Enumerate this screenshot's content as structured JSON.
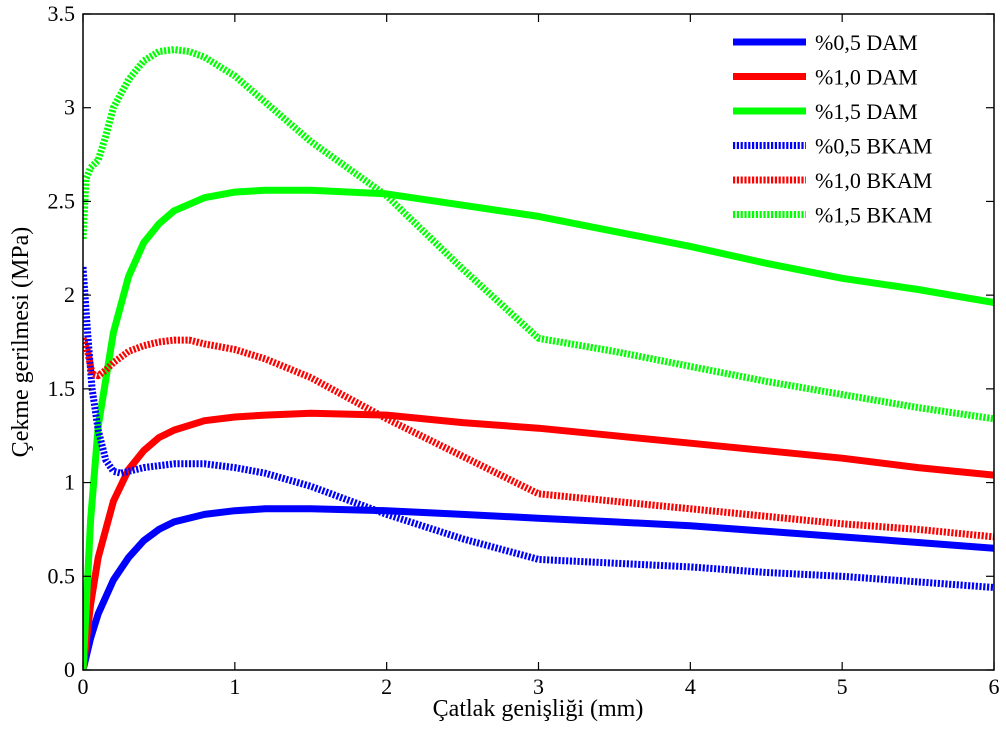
{
  "chart_data": {
    "type": "line",
    "xlabel": "Çatlak genişliği (mm)",
    "ylabel": "Çekme gerilmesi (MPa)",
    "xlim": [
      0,
      6
    ],
    "ylim": [
      0,
      3.5
    ],
    "xticks": [
      "0",
      "1",
      "2",
      "3",
      "4",
      "5",
      "6"
    ],
    "yticks": [
      "0",
      "0.5",
      "1",
      "1.5",
      "2",
      "2.5",
      "3",
      "3.5"
    ],
    "grid": false,
    "legend_position": "top-right",
    "series": [
      {
        "name": "%0,5 DAM",
        "color": "#0000ff",
        "style": "solid",
        "x": [
          0,
          0.05,
          0.1,
          0.2,
          0.3,
          0.4,
          0.5,
          0.6,
          0.8,
          1.0,
          1.2,
          1.5,
          2.0,
          2.5,
          3.0,
          3.5,
          4.0,
          4.5,
          5.0,
          5.5,
          6.0
        ],
        "y": [
          0,
          0.17,
          0.3,
          0.48,
          0.6,
          0.69,
          0.75,
          0.79,
          0.83,
          0.85,
          0.86,
          0.86,
          0.85,
          0.83,
          0.81,
          0.79,
          0.77,
          0.74,
          0.71,
          0.68,
          0.65
        ]
      },
      {
        "name": "%1,0 DAM",
        "color": "#ff0000",
        "style": "solid",
        "x": [
          0,
          0.05,
          0.1,
          0.2,
          0.3,
          0.4,
          0.5,
          0.6,
          0.8,
          1.0,
          1.2,
          1.5,
          2.0,
          2.5,
          3.0,
          3.5,
          4.0,
          4.5,
          5.0,
          5.5,
          6.0
        ],
        "y": [
          0,
          0.35,
          0.6,
          0.9,
          1.07,
          1.17,
          1.24,
          1.28,
          1.33,
          1.35,
          1.36,
          1.37,
          1.36,
          1.32,
          1.29,
          1.25,
          1.21,
          1.17,
          1.13,
          1.08,
          1.04
        ]
      },
      {
        "name": "%1,5 DAM",
        "color": "#00ff00",
        "style": "solid",
        "x": [
          0,
          0.05,
          0.1,
          0.2,
          0.3,
          0.4,
          0.5,
          0.6,
          0.8,
          1.0,
          1.2,
          1.5,
          2.0,
          2.5,
          3.0,
          3.5,
          4.0,
          4.5,
          5.0,
          5.5,
          6.0
        ],
        "y": [
          0,
          0.8,
          1.3,
          1.8,
          2.1,
          2.28,
          2.38,
          2.45,
          2.52,
          2.55,
          2.56,
          2.56,
          2.54,
          2.48,
          2.42,
          2.34,
          2.26,
          2.17,
          2.09,
          2.03,
          1.96
        ]
      },
      {
        "name": "%0,5 BKAM",
        "color": "#0000ff",
        "style": "dotted",
        "x": [
          0,
          0.03,
          0.06,
          0.1,
          0.15,
          0.2,
          0.25,
          0.3,
          0.4,
          0.5,
          0.6,
          0.7,
          0.8,
          1.0,
          1.2,
          1.5,
          2.0,
          2.5,
          3.0,
          3.5,
          4.0,
          4.5,
          5.0,
          5.5,
          6.0
        ],
        "y": [
          2.15,
          1.8,
          1.5,
          1.28,
          1.12,
          1.06,
          1.05,
          1.06,
          1.08,
          1.09,
          1.1,
          1.1,
          1.1,
          1.08,
          1.05,
          0.98,
          0.83,
          0.7,
          0.59,
          0.57,
          0.55,
          0.52,
          0.5,
          0.47,
          0.44
        ]
      },
      {
        "name": "%1,0 BKAM",
        "color": "#ff0000",
        "style": "dotted",
        "x": [
          0,
          0.03,
          0.06,
          0.1,
          0.15,
          0.2,
          0.3,
          0.4,
          0.5,
          0.6,
          0.7,
          0.8,
          1.0,
          1.2,
          1.5,
          2.0,
          2.5,
          3.0,
          3.5,
          4.0,
          4.5,
          5.0,
          5.5,
          6.0
        ],
        "y": [
          1.77,
          1.7,
          1.58,
          1.57,
          1.6,
          1.64,
          1.7,
          1.73,
          1.75,
          1.76,
          1.76,
          1.74,
          1.71,
          1.66,
          1.56,
          1.34,
          1.14,
          0.94,
          0.9,
          0.86,
          0.82,
          0.78,
          0.75,
          0.71
        ]
      },
      {
        "name": "%1,5 BKAM",
        "color": "#00ff00",
        "style": "dotted",
        "x": [
          0,
          0.02,
          0.05,
          0.1,
          0.15,
          0.2,
          0.3,
          0.4,
          0.5,
          0.6,
          0.7,
          0.8,
          1.0,
          1.2,
          1.5,
          2.0,
          2.5,
          3.0,
          3.5,
          4.0,
          4.5,
          5.0,
          5.5,
          6.0
        ],
        "y": [
          2.3,
          2.62,
          2.68,
          2.72,
          2.85,
          3.0,
          3.15,
          3.25,
          3.3,
          3.31,
          3.3,
          3.27,
          3.17,
          3.03,
          2.82,
          2.53,
          2.14,
          1.77,
          1.7,
          1.62,
          1.54,
          1.47,
          1.4,
          1.34
        ]
      }
    ]
  }
}
